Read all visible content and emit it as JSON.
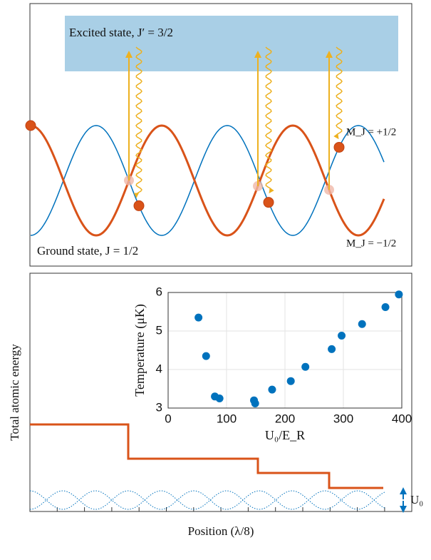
{
  "top_panel": {
    "excited_label": "Excited state, J′ = 3/2",
    "ground_label": "Ground state, J = 1/2",
    "mj_plus": "M_J = +1/2",
    "mj_minus": "M_J = −1/2"
  },
  "bottom_panel": {
    "ylabel": "Total atomic energy",
    "xlabel": "Position (λ/8)",
    "depth_label": "U₀"
  },
  "chart_data": {
    "type": "scatter",
    "xlabel": "U₀/E_R",
    "ylabel": "Temperature (μK)",
    "x": [
      52,
      65,
      80,
      88,
      147,
      149,
      178,
      210,
      235,
      280,
      297,
      332,
      372,
      395
    ],
    "values": [
      5.35,
      4.35,
      3.3,
      3.25,
      3.2,
      3.12,
      3.48,
      3.7,
      4.07,
      4.53,
      4.88,
      5.18,
      5.62,
      5.95
    ],
    "xlim": [
      0,
      400
    ],
    "ylim": [
      3,
      6
    ],
    "xticks": [
      0,
      100,
      200,
      300,
      400
    ],
    "yticks": [
      3,
      4,
      5,
      6
    ],
    "grid": true,
    "color": "#0072bd"
  }
}
